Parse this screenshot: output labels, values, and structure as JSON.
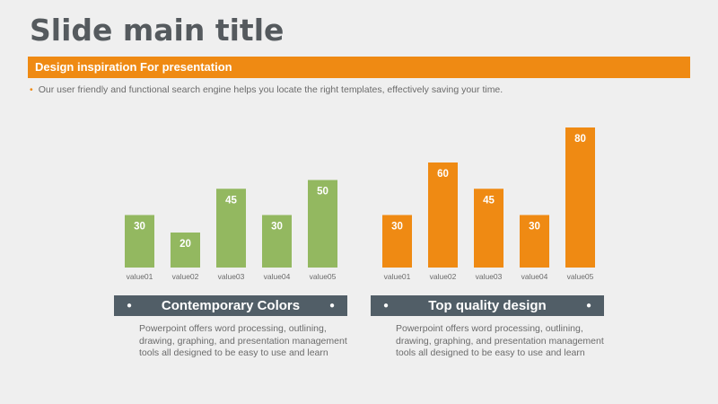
{
  "slide": {
    "title": "Slide main title",
    "banner": "Design inspiration For presentation",
    "bullet": "Our user friendly and functional search engine helps you locate the right templates, effectively saving your time."
  },
  "colors": {
    "accent": "#ef8a13",
    "green": "#93b860",
    "caption_bg": "#515e67"
  },
  "panels": [
    {
      "caption": "Contemporary Colors",
      "text": "Powerpoint offers word processing, outlining, drawing, graphing, and presentation management tools all designed to be easy to use and learn"
    },
    {
      "caption": "Top quality design",
      "text": "Powerpoint offers word processing, outlining, drawing, graphing, and presentation management tools all designed to be easy to use and learn"
    }
  ],
  "chart_data": [
    {
      "type": "bar",
      "categories": [
        "value01",
        "value02",
        "value03",
        "value04",
        "value05"
      ],
      "values": [
        30,
        20,
        45,
        30,
        50
      ],
      "color": "#93b860",
      "ylim": [
        0,
        80
      ]
    },
    {
      "type": "bar",
      "categories": [
        "value01",
        "value02",
        "value03",
        "value04",
        "value05"
      ],
      "values": [
        30,
        60,
        45,
        30,
        80
      ],
      "color": "#ef8a13",
      "ylim": [
        0,
        80
      ]
    }
  ]
}
